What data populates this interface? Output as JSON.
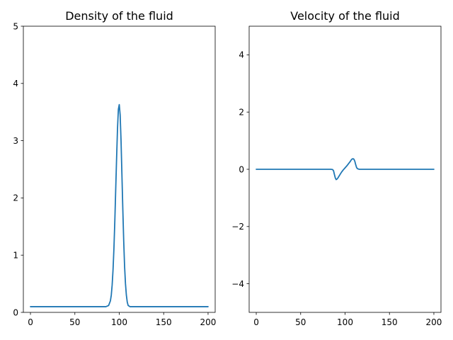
{
  "chart_data": [
    {
      "type": "line",
      "title": "Density of the fluid",
      "xlabel": "",
      "ylabel": "",
      "xlim": [
        -8,
        208
      ],
      "ylim": [
        0,
        5
      ],
      "xticks": [
        0,
        50,
        100,
        150,
        200
      ],
      "yticks": [
        0,
        1,
        2,
        3,
        4,
        5
      ],
      "xtick_labels": [
        "0",
        "50",
        "100",
        "150",
        "200"
      ],
      "ytick_labels": [
        "0",
        "1",
        "2",
        "3",
        "4",
        "5"
      ],
      "grid": false,
      "color": "#1f77b4",
      "series": [
        {
          "x": [
            0,
            10,
            20,
            30,
            40,
            50,
            60,
            70,
            80,
            85,
            88,
            90,
            91,
            92,
            93,
            94,
            95,
            96,
            97,
            98,
            99,
            100,
            101,
            102,
            103,
            104,
            105,
            106,
            107,
            108,
            109,
            110,
            112,
            115,
            120,
            130,
            140,
            150,
            160,
            170,
            180,
            190,
            200
          ],
          "values": [
            0.1,
            0.1,
            0.1,
            0.1,
            0.1,
            0.1,
            0.1,
            0.1,
            0.1,
            0.1,
            0.12,
            0.2,
            0.3,
            0.48,
            0.75,
            1.12,
            1.6,
            2.15,
            2.7,
            3.2,
            3.55,
            3.63,
            3.45,
            3.0,
            2.4,
            1.8,
            1.25,
            0.8,
            0.5,
            0.3,
            0.18,
            0.12,
            0.1,
            0.1,
            0.1,
            0.1,
            0.1,
            0.1,
            0.1,
            0.1,
            0.1,
            0.1,
            0.1
          ]
        }
      ]
    },
    {
      "type": "line",
      "title": "Velocity of the fluid",
      "xlabel": "",
      "ylabel": "",
      "xlim": [
        -8,
        208
      ],
      "ylim": [
        -5,
        5
      ],
      "xticks": [
        0,
        50,
        100,
        150,
        200
      ],
      "yticks": [
        -4,
        -2,
        0,
        2,
        4
      ],
      "xtick_labels": [
        "0",
        "50",
        "100",
        "150",
        "200"
      ],
      "ytick_labels": [
        "−4",
        "−2",
        "0",
        "2",
        "4"
      ],
      "grid": false,
      "color": "#1f77b4",
      "series": [
        {
          "x": [
            0,
            20,
            40,
            60,
            80,
            84,
            86,
            87,
            88,
            89,
            90,
            91,
            92,
            94,
            96,
            98,
            100,
            102,
            104,
            106,
            107,
            108,
            109,
            110,
            111,
            112,
            113,
            114,
            116,
            120,
            140,
            160,
            180,
            200
          ],
          "values": [
            0,
            0,
            0,
            0,
            0,
            0,
            -0.01,
            -0.05,
            -0.18,
            -0.3,
            -0.36,
            -0.34,
            -0.3,
            -0.2,
            -0.1,
            -0.02,
            0.05,
            0.12,
            0.2,
            0.28,
            0.33,
            0.36,
            0.37,
            0.35,
            0.28,
            0.16,
            0.06,
            0.02,
            0,
            0,
            0,
            0,
            0,
            0
          ]
        }
      ]
    }
  ]
}
